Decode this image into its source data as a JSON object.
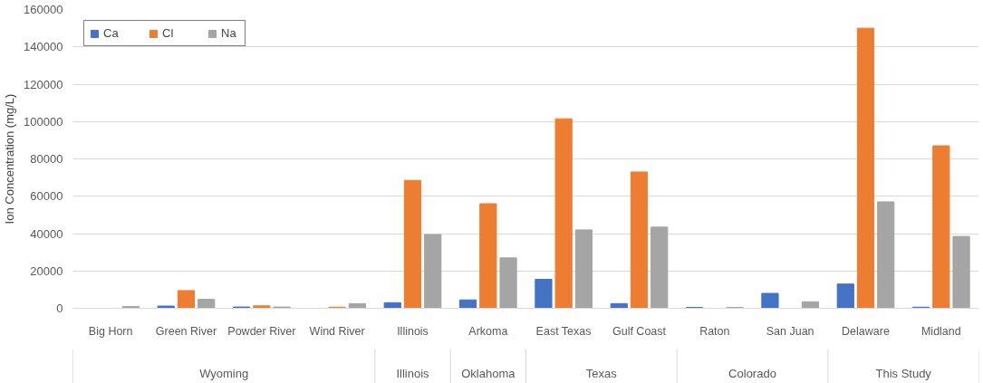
{
  "chart_data": {
    "type": "bar",
    "ylabel": "Ion Concentration (mg/L)",
    "categories": [
      "Big Horn",
      "Green River",
      "Powder River",
      "Wind River",
      "Illinois",
      "Arkoma",
      "East Texas",
      "Gulf Coast",
      "Raton",
      "San Juan",
      "Delaware",
      "Midland"
    ],
    "series": [
      {
        "name": "Ca",
        "color": "#4472c4",
        "values": [
          0,
          1200,
          700,
          0,
          3000,
          4500,
          15500,
          2500,
          500,
          8000,
          13000,
          600
        ]
      },
      {
        "name": "Cl",
        "color": "#ed7d31",
        "values": [
          0,
          9500,
          1300,
          600,
          68500,
          56000,
          101500,
          73000,
          0,
          0,
          150000,
          87000
        ]
      },
      {
        "name": "Na",
        "color": "#a5a5a5",
        "values": [
          1000,
          4800,
          700,
          2500,
          39500,
          27000,
          42000,
          43500,
          500,
          3500,
          57000,
          38500
        ]
      }
    ],
    "ylim": [
      0,
      160000
    ],
    "yticks": [
      0,
      20000,
      40000,
      60000,
      80000,
      100000,
      120000,
      140000,
      160000
    ],
    "grid": "y",
    "legend": "top left",
    "annotations": [
      "Wyoming",
      "Illinois",
      "Oklahoma",
      "Texas",
      "Colorado",
      "This Study"
    ]
  }
}
